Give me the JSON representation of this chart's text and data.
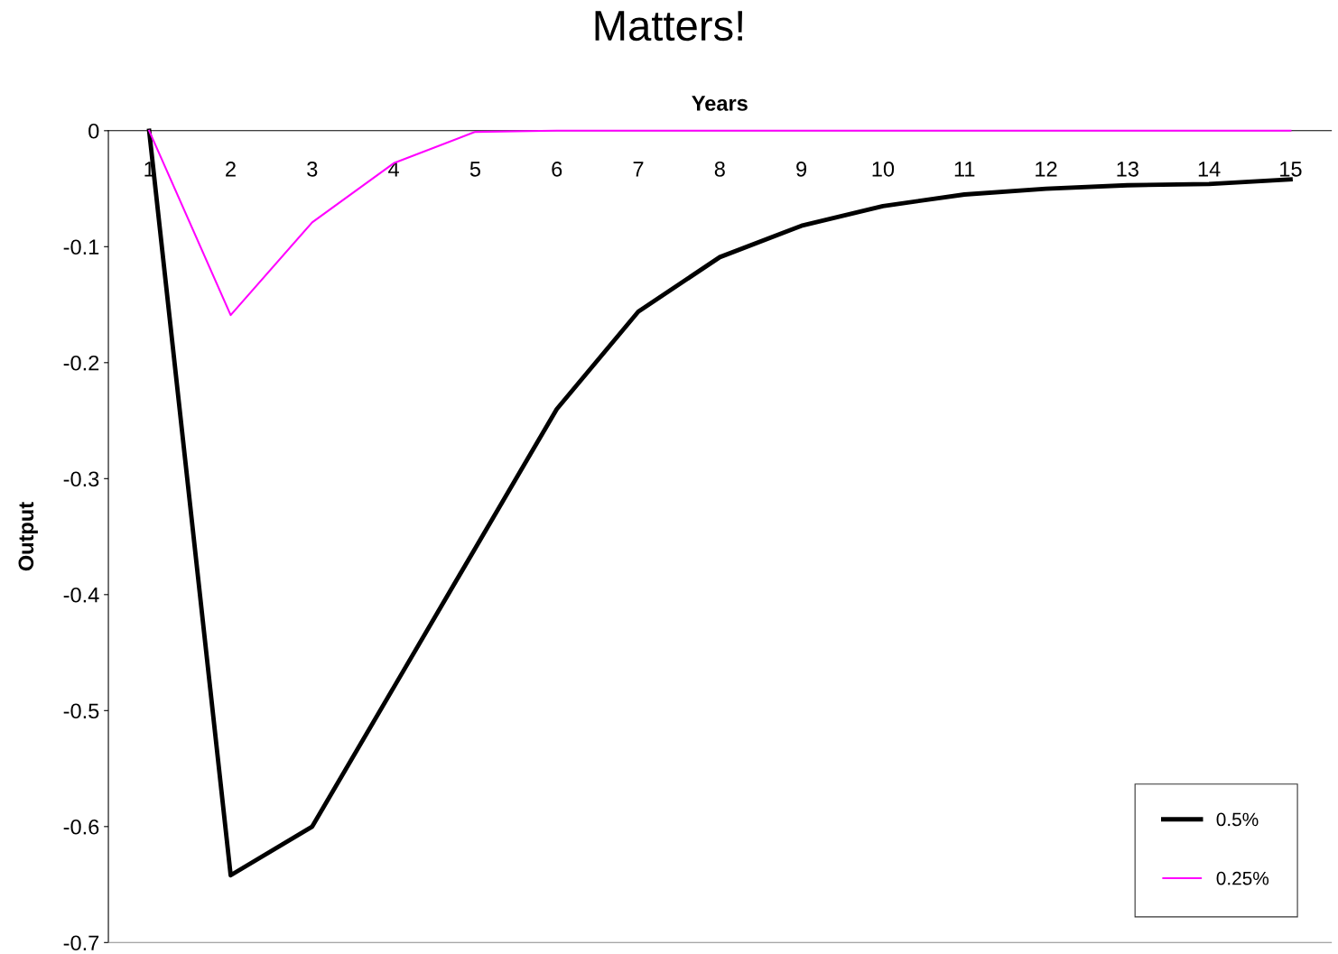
{
  "chart_data": {
    "type": "line",
    "title": "Matters!",
    "xlabel": "Years",
    "ylabel": "Output",
    "categories": [
      "1",
      "2",
      "3",
      "4",
      "5",
      "6",
      "7",
      "8",
      "9",
      "10",
      "11",
      "12",
      "13",
      "14",
      "15"
    ],
    "series": [
      {
        "name": "0.5%",
        "color": "#000000",
        "values": [
          0,
          -0.642,
          -0.6,
          -0.48,
          -0.36,
          -0.24,
          -0.156,
          -0.109,
          -0.082,
          -0.065,
          -0.055,
          -0.05,
          -0.047,
          -0.046,
          -0.042
        ]
      },
      {
        "name": "0.25%",
        "color": "#ff00ff",
        "values": [
          0,
          -0.159,
          -0.079,
          -0.028,
          -0.001,
          0,
          0,
          0,
          0,
          0,
          0,
          0,
          0,
          0,
          0
        ]
      }
    ],
    "ylim": [
      -0.7,
      0
    ],
    "yticks": [
      -0.7,
      -0.6,
      -0.5,
      -0.4,
      -0.3,
      -0.2,
      -0.1,
      0
    ],
    "legend": "bottom right",
    "grid": false
  }
}
